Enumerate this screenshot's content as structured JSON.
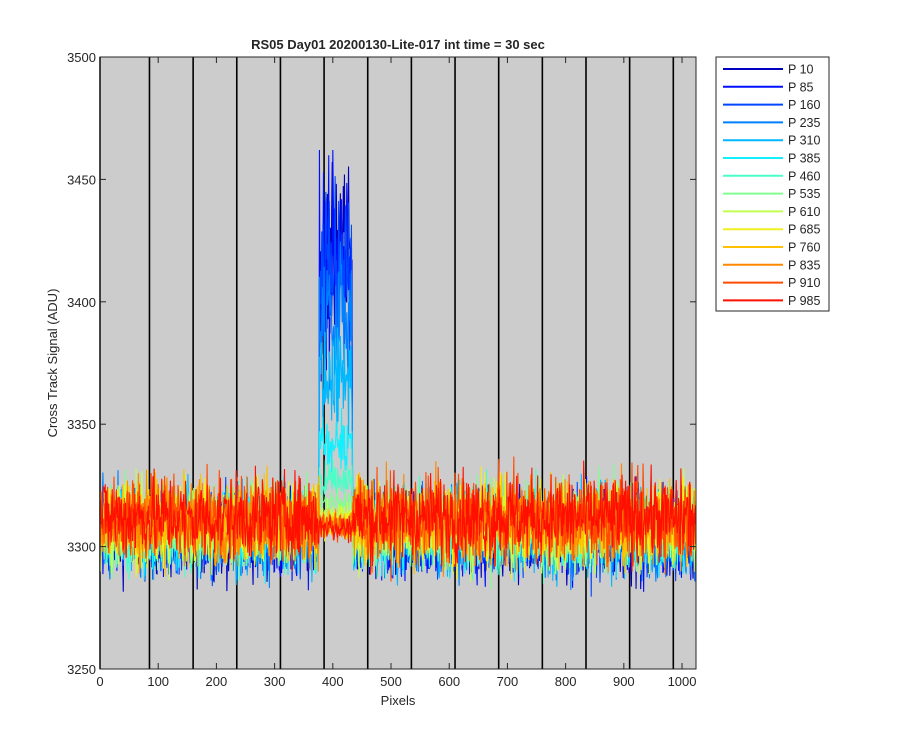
{
  "chart_data": {
    "type": "line",
    "title": "RS05 Day01 20200130-Lite-017 int time = 30 sec",
    "xlabel": "Pixels",
    "ylabel": "Cross Track Signal (ADU)",
    "xlim": [
      0,
      1024
    ],
    "ylim": [
      3250,
      3500
    ],
    "xticks": [
      0,
      100,
      200,
      300,
      400,
      500,
      600,
      700,
      800,
      900,
      1000
    ],
    "yticks": [
      3250,
      3300,
      3350,
      3400,
      3450,
      3500
    ],
    "xtick_labels": [
      "0",
      "100",
      "200",
      "300",
      "400",
      "500",
      "600",
      "700",
      "800",
      "900",
      "1000"
    ],
    "ytick_labels": [
      "3250",
      "3300",
      "3350",
      "3400",
      "3450",
      "3500"
    ],
    "plot_background": "#cccccc",
    "vertical_lines_x": [
      0,
      85,
      160,
      235,
      310,
      385,
      460,
      535,
      610,
      685,
      760,
      835,
      910,
      985
    ],
    "legend_position": "outside-top-right",
    "noise": {
      "baseline_min": 3304,
      "baseline_max": 3312,
      "noise_range_min": 3272,
      "noise_range_max": 3346
    },
    "feature": {
      "x_start": 377,
      "x_end": 433,
      "peak_max": 3462,
      "description_values": {
        "P 10": 3420,
        "P 85": 3415,
        "P 160": 3410,
        "P 235": 3395,
        "P 310": 3368,
        "P 385": 3342,
        "P 460": 3328,
        "P 535": 3318,
        "P 610": 3313,
        "P 685": 3310,
        "P 760": 3309,
        "P 835": 3308,
        "P 910": 3308,
        "P 985": 3308
      }
    },
    "series": [
      {
        "name": "P 10",
        "color": "#0000bf"
      },
      {
        "name": "P 85",
        "color": "#0010ff"
      },
      {
        "name": "P 160",
        "color": "#0048ff"
      },
      {
        "name": "P 235",
        "color": "#0080ff"
      },
      {
        "name": "P 310",
        "color": "#00b8ff"
      },
      {
        "name": "P 385",
        "color": "#10f0ff"
      },
      {
        "name": "P 460",
        "color": "#48ffc8"
      },
      {
        "name": "P 535",
        "color": "#80ff90"
      },
      {
        "name": "P 610",
        "color": "#c0ff50"
      },
      {
        "name": "P 685",
        "color": "#f0f020"
      },
      {
        "name": "P 760",
        "color": "#ffc000"
      },
      {
        "name": "P 835",
        "color": "#ff8800"
      },
      {
        "name": "P 910",
        "color": "#ff4c00"
      },
      {
        "name": "P 985",
        "color": "#ff0f00"
      }
    ]
  }
}
